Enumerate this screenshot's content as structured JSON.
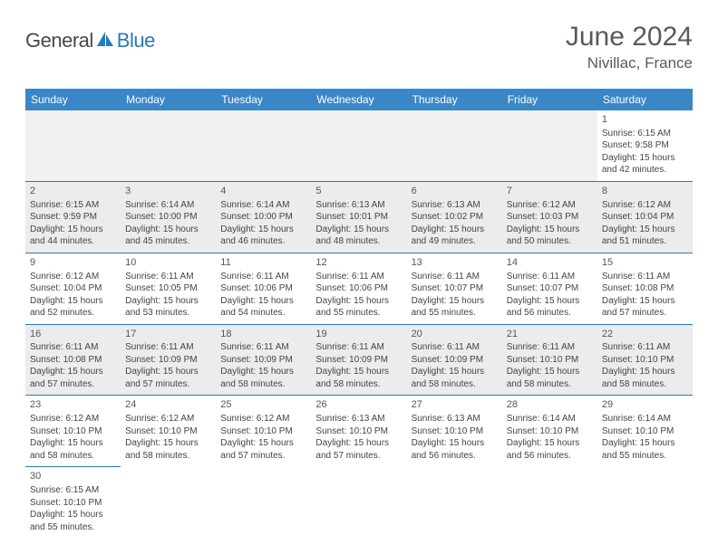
{
  "logo": {
    "part1": "General",
    "part2": "Blue",
    "text_color": "#4a4a4a",
    "accent_color": "#2a7ab8"
  },
  "title": "June 2024",
  "location": "Nivillac, France",
  "header_bg": "#3a87c8",
  "header_text_color": "#ffffff",
  "row_white_bg": "#ffffff",
  "row_gray_bg": "#ececec",
  "border_color": "#2a7ab8",
  "weekdays": [
    "Sunday",
    "Monday",
    "Tuesday",
    "Wednesday",
    "Thursday",
    "Friday",
    "Saturday"
  ],
  "weeks": [
    [
      null,
      null,
      null,
      null,
      null,
      null,
      {
        "n": "1",
        "sr": "Sunrise: 6:15 AM",
        "ss": "Sunset: 9:58 PM",
        "d1": "Daylight: 15 hours",
        "d2": "and 42 minutes."
      }
    ],
    [
      {
        "n": "2",
        "sr": "Sunrise: 6:15 AM",
        "ss": "Sunset: 9:59 PM",
        "d1": "Daylight: 15 hours",
        "d2": "and 44 minutes."
      },
      {
        "n": "3",
        "sr": "Sunrise: 6:14 AM",
        "ss": "Sunset: 10:00 PM",
        "d1": "Daylight: 15 hours",
        "d2": "and 45 minutes."
      },
      {
        "n": "4",
        "sr": "Sunrise: 6:14 AM",
        "ss": "Sunset: 10:00 PM",
        "d1": "Daylight: 15 hours",
        "d2": "and 46 minutes."
      },
      {
        "n": "5",
        "sr": "Sunrise: 6:13 AM",
        "ss": "Sunset: 10:01 PM",
        "d1": "Daylight: 15 hours",
        "d2": "and 48 minutes."
      },
      {
        "n": "6",
        "sr": "Sunrise: 6:13 AM",
        "ss": "Sunset: 10:02 PM",
        "d1": "Daylight: 15 hours",
        "d2": "and 49 minutes."
      },
      {
        "n": "7",
        "sr": "Sunrise: 6:12 AM",
        "ss": "Sunset: 10:03 PM",
        "d1": "Daylight: 15 hours",
        "d2": "and 50 minutes."
      },
      {
        "n": "8",
        "sr": "Sunrise: 6:12 AM",
        "ss": "Sunset: 10:04 PM",
        "d1": "Daylight: 15 hours",
        "d2": "and 51 minutes."
      }
    ],
    [
      {
        "n": "9",
        "sr": "Sunrise: 6:12 AM",
        "ss": "Sunset: 10:04 PM",
        "d1": "Daylight: 15 hours",
        "d2": "and 52 minutes."
      },
      {
        "n": "10",
        "sr": "Sunrise: 6:11 AM",
        "ss": "Sunset: 10:05 PM",
        "d1": "Daylight: 15 hours",
        "d2": "and 53 minutes."
      },
      {
        "n": "11",
        "sr": "Sunrise: 6:11 AM",
        "ss": "Sunset: 10:06 PM",
        "d1": "Daylight: 15 hours",
        "d2": "and 54 minutes."
      },
      {
        "n": "12",
        "sr": "Sunrise: 6:11 AM",
        "ss": "Sunset: 10:06 PM",
        "d1": "Daylight: 15 hours",
        "d2": "and 55 minutes."
      },
      {
        "n": "13",
        "sr": "Sunrise: 6:11 AM",
        "ss": "Sunset: 10:07 PM",
        "d1": "Daylight: 15 hours",
        "d2": "and 55 minutes."
      },
      {
        "n": "14",
        "sr": "Sunrise: 6:11 AM",
        "ss": "Sunset: 10:07 PM",
        "d1": "Daylight: 15 hours",
        "d2": "and 56 minutes."
      },
      {
        "n": "15",
        "sr": "Sunrise: 6:11 AM",
        "ss": "Sunset: 10:08 PM",
        "d1": "Daylight: 15 hours",
        "d2": "and 57 minutes."
      }
    ],
    [
      {
        "n": "16",
        "sr": "Sunrise: 6:11 AM",
        "ss": "Sunset: 10:08 PM",
        "d1": "Daylight: 15 hours",
        "d2": "and 57 minutes."
      },
      {
        "n": "17",
        "sr": "Sunrise: 6:11 AM",
        "ss": "Sunset: 10:09 PM",
        "d1": "Daylight: 15 hours",
        "d2": "and 57 minutes."
      },
      {
        "n": "18",
        "sr": "Sunrise: 6:11 AM",
        "ss": "Sunset: 10:09 PM",
        "d1": "Daylight: 15 hours",
        "d2": "and 58 minutes."
      },
      {
        "n": "19",
        "sr": "Sunrise: 6:11 AM",
        "ss": "Sunset: 10:09 PM",
        "d1": "Daylight: 15 hours",
        "d2": "and 58 minutes."
      },
      {
        "n": "20",
        "sr": "Sunrise: 6:11 AM",
        "ss": "Sunset: 10:09 PM",
        "d1": "Daylight: 15 hours",
        "d2": "and 58 minutes."
      },
      {
        "n": "21",
        "sr": "Sunrise: 6:11 AM",
        "ss": "Sunset: 10:10 PM",
        "d1": "Daylight: 15 hours",
        "d2": "and 58 minutes."
      },
      {
        "n": "22",
        "sr": "Sunrise: 6:11 AM",
        "ss": "Sunset: 10:10 PM",
        "d1": "Daylight: 15 hours",
        "d2": "and 58 minutes."
      }
    ],
    [
      {
        "n": "23",
        "sr": "Sunrise: 6:12 AM",
        "ss": "Sunset: 10:10 PM",
        "d1": "Daylight: 15 hours",
        "d2": "and 58 minutes."
      },
      {
        "n": "24",
        "sr": "Sunrise: 6:12 AM",
        "ss": "Sunset: 10:10 PM",
        "d1": "Daylight: 15 hours",
        "d2": "and 58 minutes."
      },
      {
        "n": "25",
        "sr": "Sunrise: 6:12 AM",
        "ss": "Sunset: 10:10 PM",
        "d1": "Daylight: 15 hours",
        "d2": "and 57 minutes."
      },
      {
        "n": "26",
        "sr": "Sunrise: 6:13 AM",
        "ss": "Sunset: 10:10 PM",
        "d1": "Daylight: 15 hours",
        "d2": "and 57 minutes."
      },
      {
        "n": "27",
        "sr": "Sunrise: 6:13 AM",
        "ss": "Sunset: 10:10 PM",
        "d1": "Daylight: 15 hours",
        "d2": "and 56 minutes."
      },
      {
        "n": "28",
        "sr": "Sunrise: 6:14 AM",
        "ss": "Sunset: 10:10 PM",
        "d1": "Daylight: 15 hours",
        "d2": "and 56 minutes."
      },
      {
        "n": "29",
        "sr": "Sunrise: 6:14 AM",
        "ss": "Sunset: 10:10 PM",
        "d1": "Daylight: 15 hours",
        "d2": "and 55 minutes."
      }
    ],
    [
      {
        "n": "30",
        "sr": "Sunrise: 6:15 AM",
        "ss": "Sunset: 10:10 PM",
        "d1": "Daylight: 15 hours",
        "d2": "and 55 minutes."
      },
      null,
      null,
      null,
      null,
      null,
      null
    ]
  ]
}
